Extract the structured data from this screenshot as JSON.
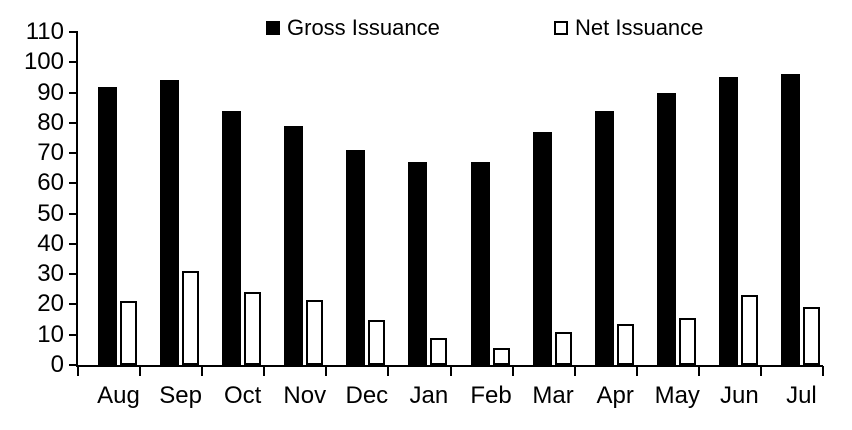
{
  "chart_data": {
    "type": "bar",
    "title": "",
    "xlabel": "",
    "ylabel": "",
    "categories": [
      "Aug",
      "Sep",
      "Oct",
      "Nov",
      "Dec",
      "Jan",
      "Feb",
      "Mar",
      "Apr",
      "May",
      "Jun",
      "Jul"
    ],
    "series": [
      {
        "name": "Gross Issuance",
        "fill": "#000000",
        "border": "#000000",
        "values": [
          92,
          94,
          84,
          79,
          71,
          67,
          67,
          77,
          84,
          90,
          95,
          96
        ]
      },
      {
        "name": "Net Issuance",
        "fill": "#ffffff",
        "border": "#000000",
        "values": [
          21,
          31,
          24,
          21.5,
          15,
          9,
          5.5,
          11,
          13.5,
          15.5,
          23,
          19
        ]
      }
    ],
    "ylim": [
      0,
      110
    ],
    "y_tick_step": 10,
    "y_ticks": [
      110,
      100,
      90,
      80,
      70,
      60,
      50,
      40,
      30,
      20,
      10,
      0
    ],
    "grid": false,
    "legend_position": "top",
    "axis_color": "#000000",
    "background_color": "#ffffff"
  },
  "legend": {
    "gross_label": "Gross Issuance",
    "net_label": "Net Issuance"
  }
}
